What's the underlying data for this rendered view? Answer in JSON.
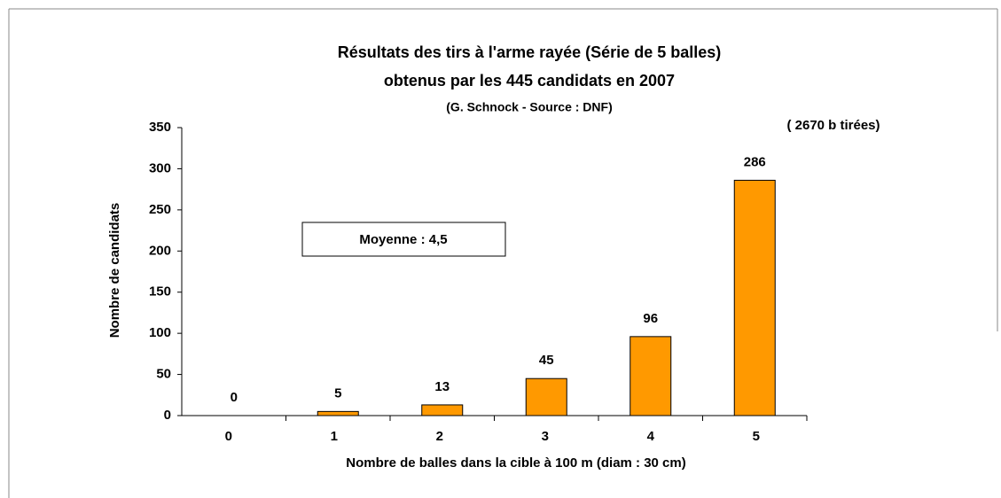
{
  "chart_data": {
    "type": "bar",
    "title": [
      "Résultats des tirs à l'arme rayée (Série de 5 balles)",
      "obtenus par les 445 candidats en 2007"
    ],
    "subtitle": "(G. Schnock - Source : DNF)",
    "annotations": [
      "( 2670 b tirées)",
      "Moyenne : 4,5"
    ],
    "x_label": "Nombre de balles dans la cible à 100 m (diam : 30 cm)",
    "y_label": "Nombre de candidats",
    "categories": [
      "0",
      "1",
      "2",
      "3",
      "4",
      "5"
    ],
    "values": [
      0,
      5,
      13,
      45,
      96,
      286
    ],
    "color": "#ff9900",
    "ylim": [
      0,
      350
    ],
    "yticks": [
      0,
      50,
      100,
      150,
      200,
      250,
      300,
      350
    ],
    "grid": false
  }
}
